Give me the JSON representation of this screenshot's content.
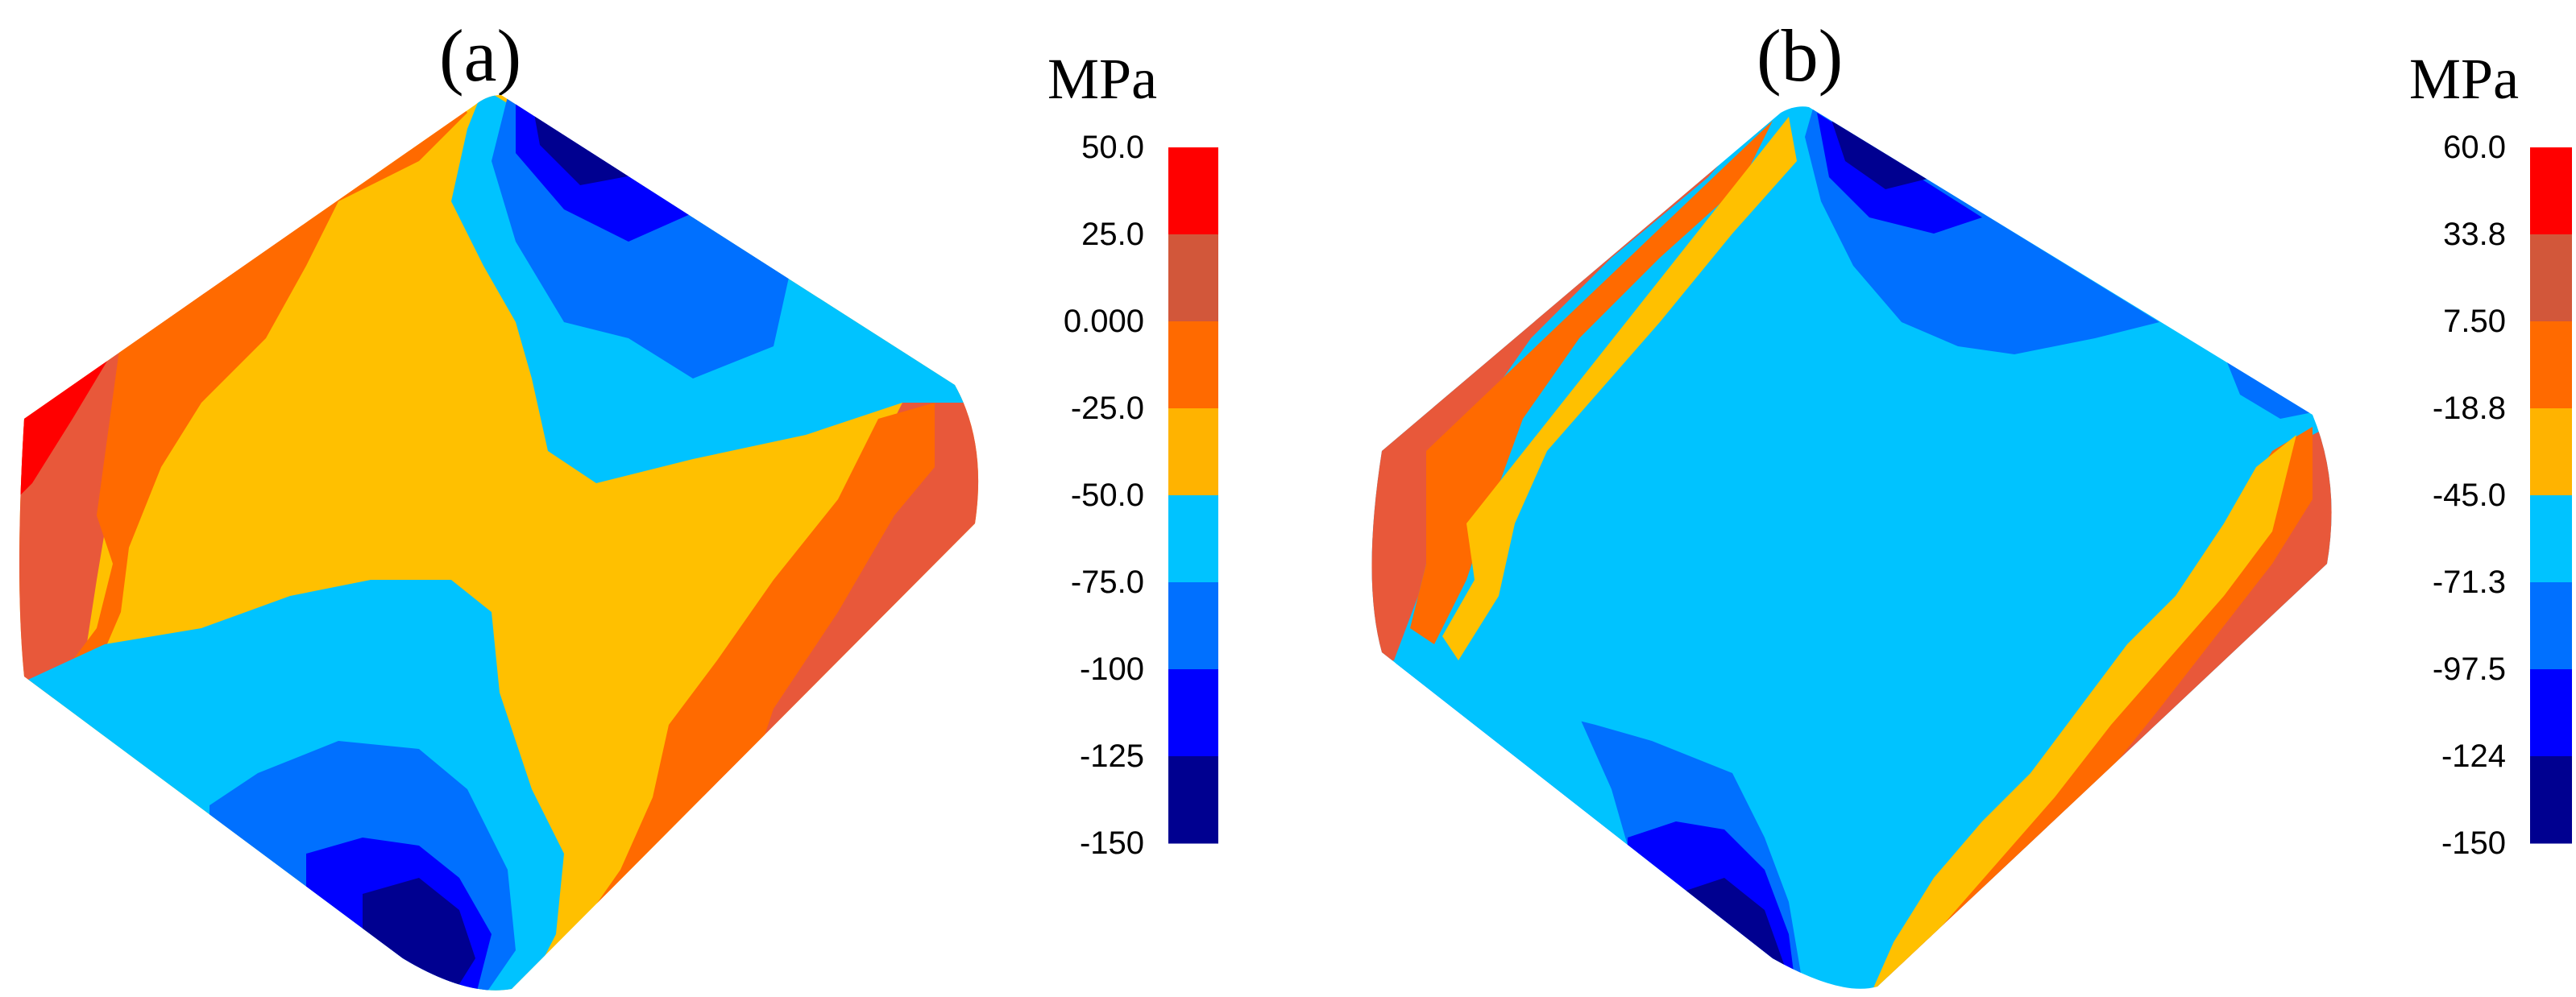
{
  "panels": [
    {
      "label": "(a)",
      "unit": "MPa",
      "ticks": [
        "50.0",
        "25.0",
        "0.000",
        "-25.0",
        "-50.0",
        "-75.0",
        "-100",
        "-125",
        "-150"
      ],
      "colors": [
        "#ff0000",
        "#d2573a",
        "#ff6a00",
        "#ffb300",
        "#00c3ff",
        "#0070ff",
        "#0000ff",
        "#000090"
      ]
    },
    {
      "label": "(b)",
      "unit": "MPa",
      "ticks": [
        "60.0",
        "33.8",
        "7.50",
        "-18.8",
        "-45.0",
        "-71.3",
        "-97.5",
        "-124",
        "-150"
      ],
      "colors": [
        "#ff0000",
        "#d2573a",
        "#ff6a00",
        "#ffb300",
        "#00c3ff",
        "#0070ff",
        "#0000ff",
        "#000090"
      ]
    }
  ],
  "palette": {
    "red": "#ff0000",
    "brick": "#e8583a",
    "orange": "#ff6a00",
    "yellow": "#ffc000",
    "cyan": "#00c3ff",
    "blue": "#0070ff",
    "deep_blue": "#0000ff",
    "navy": "#000090"
  }
}
